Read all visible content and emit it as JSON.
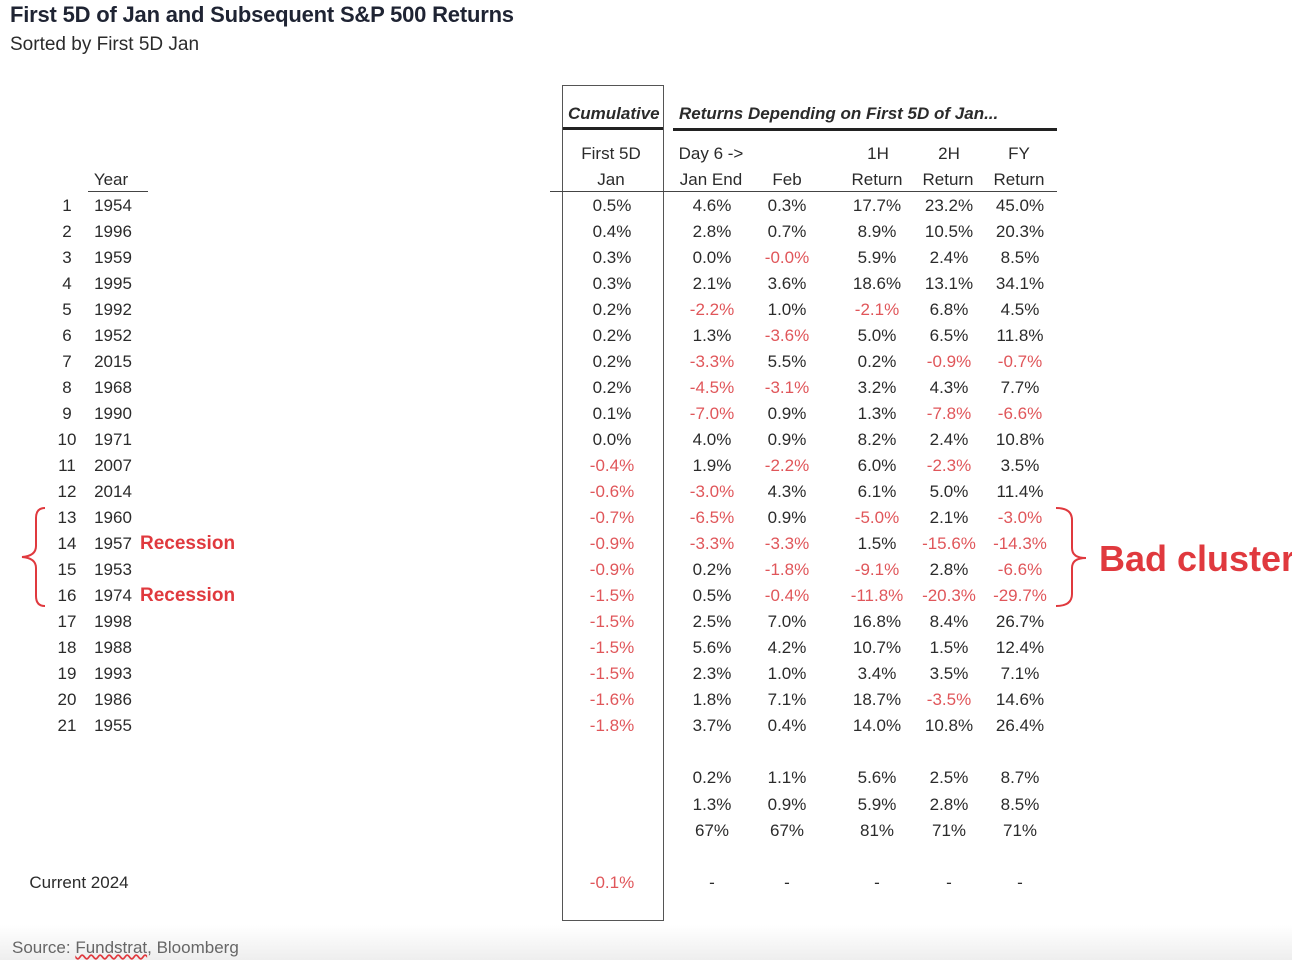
{
  "title": "First 5D of Jan and Subsequent S&P 500 Returns",
  "subtitle": "Sorted by First 5D Jan",
  "headers": {
    "cumulative": "Cumulative",
    "returns_group": "Returns Depending on First 5D of Jan...",
    "year": "Year",
    "first5d_l1": "First 5D",
    "first5d_l2": "Jan",
    "day6_l1": "Day 6 ->",
    "day6_l2": "Jan End",
    "feb": "Feb",
    "h1_l1": "1H",
    "h1_l2": "Return",
    "h2_l1": "2H",
    "h2_l2": "Return",
    "fy_l1": "FY",
    "fy_l2": "Return"
  },
  "colors": {
    "negative": "#e0565a",
    "annotation": "#e0393e",
    "text": "#2b2b2b"
  },
  "chart_data": {
    "type": "table",
    "columns": [
      "#",
      "Year",
      "First 5D Jan",
      "Day 6 -> Jan End",
      "Feb",
      "1H Return",
      "2H Return",
      "FY Return"
    ],
    "rows": [
      [
        "1",
        "1954",
        "0.5%",
        "4.6%",
        "0.3%",
        "17.7%",
        "23.2%",
        "45.0%"
      ],
      [
        "2",
        "1996",
        "0.4%",
        "2.8%",
        "0.7%",
        "8.9%",
        "10.5%",
        "20.3%"
      ],
      [
        "3",
        "1959",
        "0.3%",
        "0.0%",
        "-0.0%",
        "5.9%",
        "2.4%",
        "8.5%"
      ],
      [
        "4",
        "1995",
        "0.3%",
        "2.1%",
        "3.6%",
        "18.6%",
        "13.1%",
        "34.1%"
      ],
      [
        "5",
        "1992",
        "0.2%",
        "-2.2%",
        "1.0%",
        "-2.1%",
        "6.8%",
        "4.5%"
      ],
      [
        "6",
        "1952",
        "0.2%",
        "1.3%",
        "-3.6%",
        "5.0%",
        "6.5%",
        "11.8%"
      ],
      [
        "7",
        "2015",
        "0.2%",
        "-3.3%",
        "5.5%",
        "0.2%",
        "-0.9%",
        "-0.7%"
      ],
      [
        "8",
        "1968",
        "0.2%",
        "-4.5%",
        "-3.1%",
        "3.2%",
        "4.3%",
        "7.7%"
      ],
      [
        "9",
        "1990",
        "0.1%",
        "-7.0%",
        "0.9%",
        "1.3%",
        "-7.8%",
        "-6.6%"
      ],
      [
        "10",
        "1971",
        "0.0%",
        "4.0%",
        "0.9%",
        "8.2%",
        "2.4%",
        "10.8%"
      ],
      [
        "11",
        "2007",
        "-0.4%",
        "1.9%",
        "-2.2%",
        "6.0%",
        "-2.3%",
        "3.5%"
      ],
      [
        "12",
        "2014",
        "-0.6%",
        "-3.0%",
        "4.3%",
        "6.1%",
        "5.0%",
        "11.4%"
      ],
      [
        "13",
        "1960",
        "-0.7%",
        "-6.5%",
        "0.9%",
        "-5.0%",
        "2.1%",
        "-3.0%"
      ],
      [
        "14",
        "1957",
        "-0.9%",
        "-3.3%",
        "-3.3%",
        "1.5%",
        "-15.6%",
        "-14.3%"
      ],
      [
        "15",
        "1953",
        "-0.9%",
        "0.2%",
        "-1.8%",
        "-9.1%",
        "2.8%",
        "-6.6%"
      ],
      [
        "16",
        "1974",
        "-1.5%",
        "0.5%",
        "-0.4%",
        "-11.8%",
        "-20.3%",
        "-29.7%"
      ],
      [
        "17",
        "1998",
        "-1.5%",
        "2.5%",
        "7.0%",
        "16.8%",
        "8.4%",
        "26.7%"
      ],
      [
        "18",
        "1988",
        "-1.5%",
        "5.6%",
        "4.2%",
        "10.7%",
        "1.5%",
        "12.4%"
      ],
      [
        "19",
        "1993",
        "-1.5%",
        "2.3%",
        "1.0%",
        "3.4%",
        "3.5%",
        "7.1%"
      ],
      [
        "20",
        "1986",
        "-1.6%",
        "1.8%",
        "7.1%",
        "18.7%",
        "-3.5%",
        "14.6%"
      ],
      [
        "21",
        "1955",
        "-1.8%",
        "3.7%",
        "0.4%",
        "14.0%",
        "10.8%",
        "26.4%"
      ]
    ],
    "summary_rows": [
      [
        "0.2%",
        "1.1%",
        "5.6%",
        "2.5%",
        "8.7%"
      ],
      [
        "1.3%",
        "0.9%",
        "5.9%",
        "2.8%",
        "8.5%"
      ],
      [
        "67%",
        "67%",
        "81%",
        "71%",
        "71%"
      ]
    ],
    "current": {
      "label": "Current 2024",
      "first5d": "-0.1%",
      "others": [
        "-",
        "-",
        "-",
        "-",
        "-"
      ]
    }
  },
  "annotations": {
    "recession_label": "Recession",
    "recession_rows": [
      14,
      16
    ],
    "bad_cluster_label": "Bad cluster",
    "bad_cluster_rows": [
      13,
      16
    ]
  },
  "source": {
    "prefix": "Source: ",
    "name1": "Fundstrat",
    "rest": ", Bloomberg"
  }
}
